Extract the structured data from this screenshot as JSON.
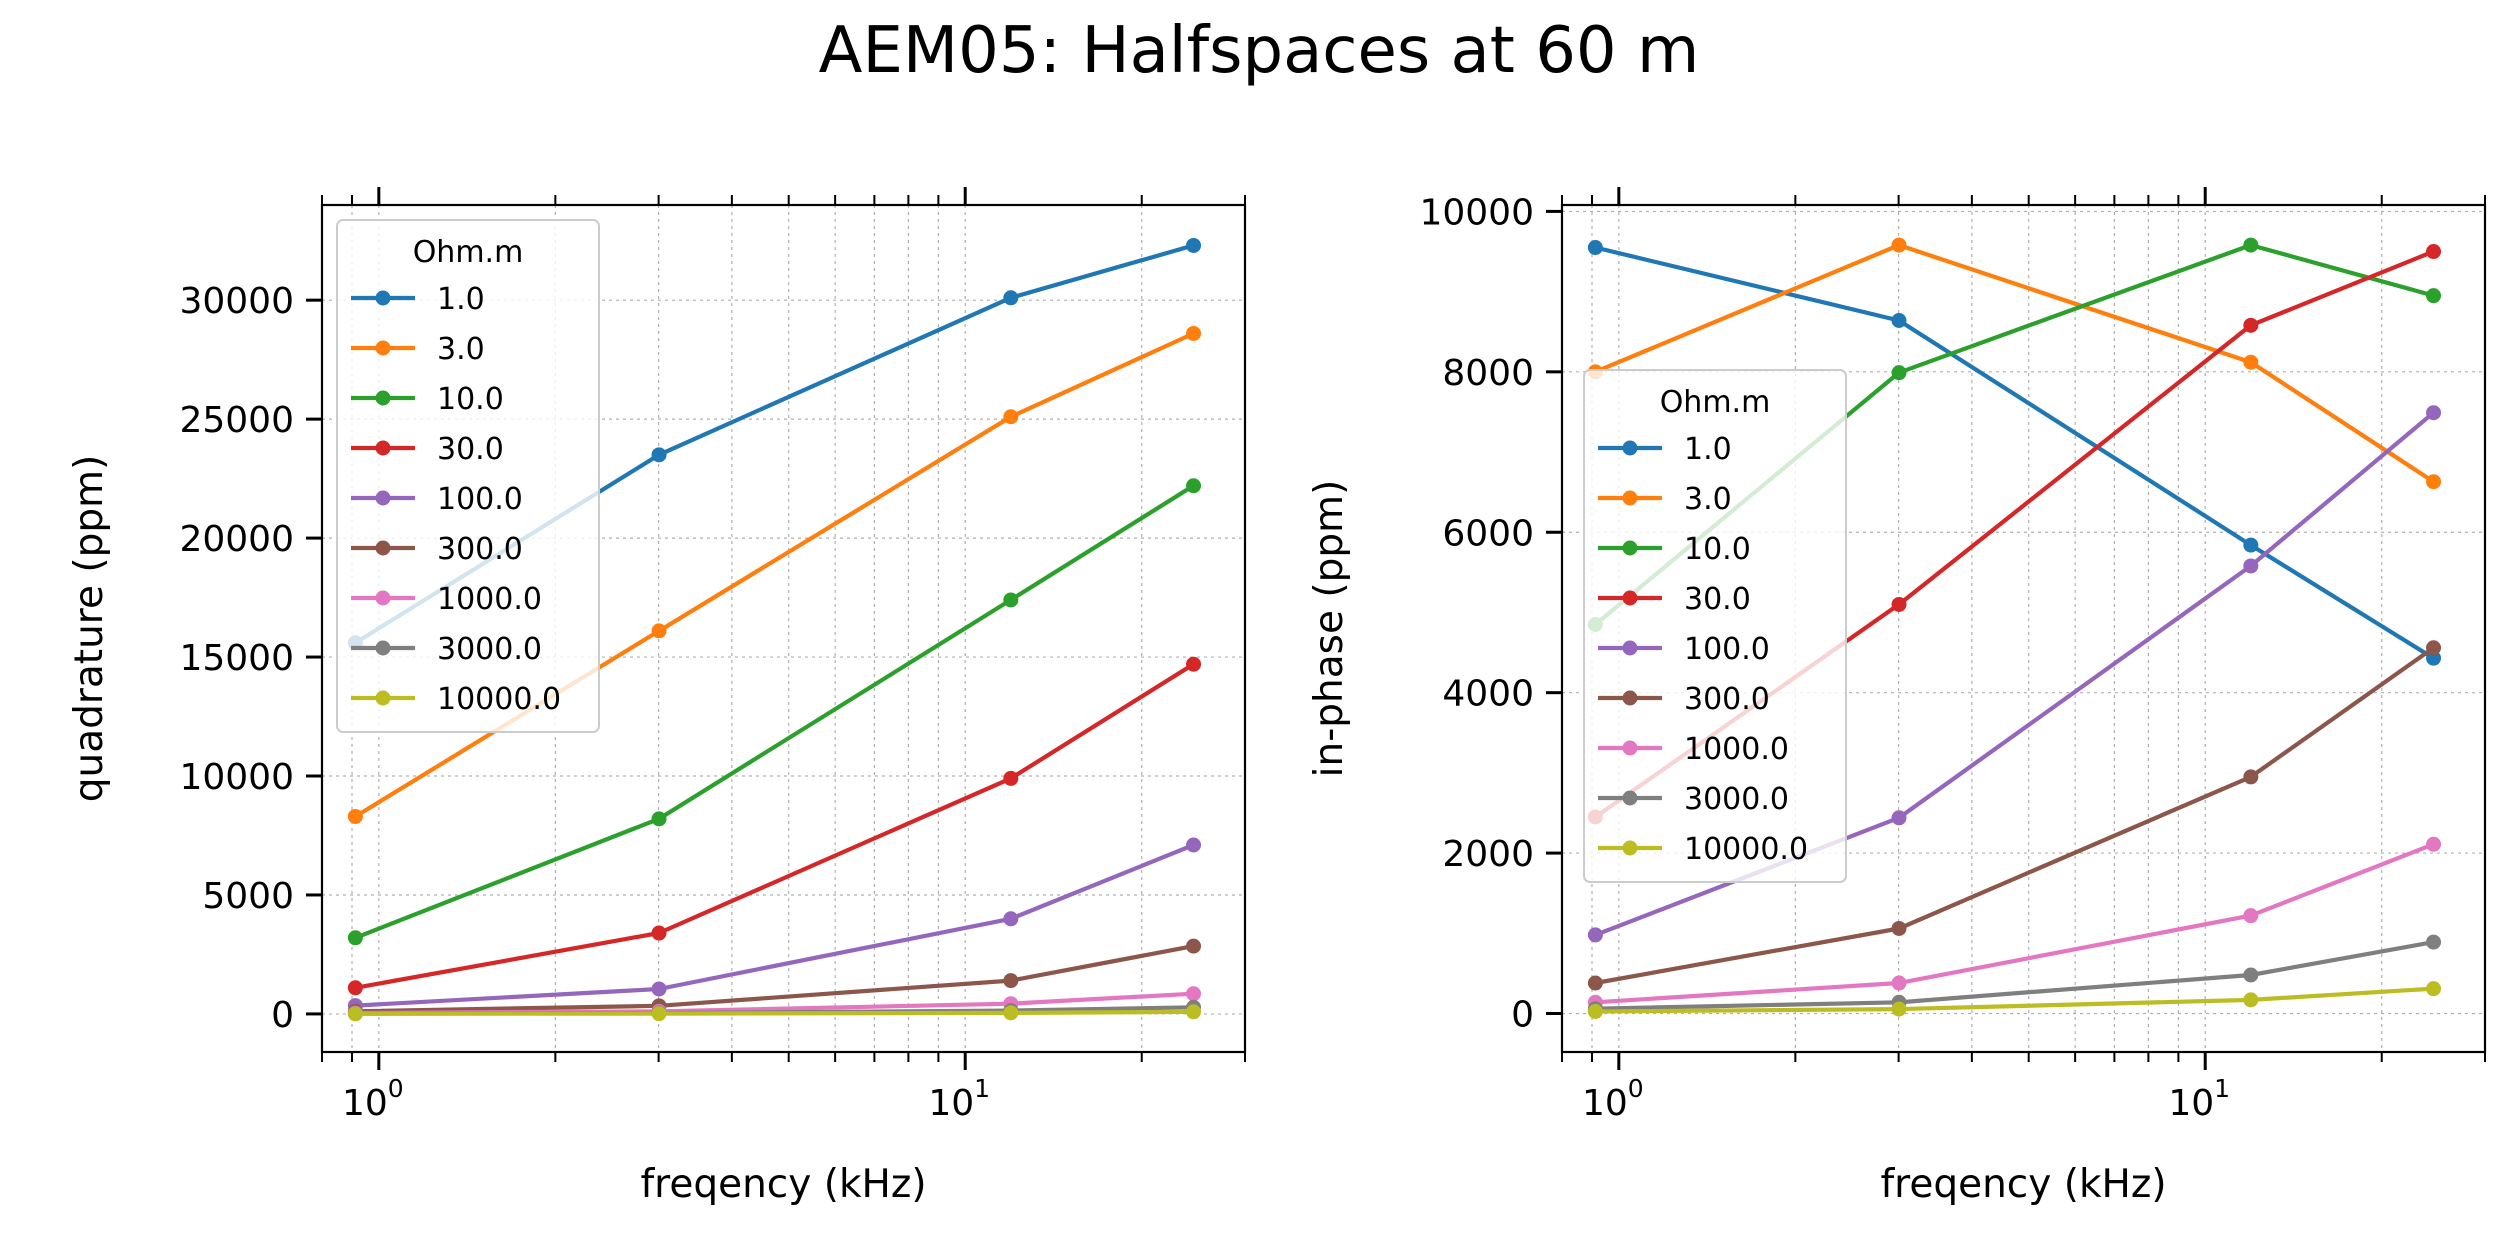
{
  "figure": {
    "suptitle": "AEM05: Halfspaces at 60 m"
  },
  "chart_data": [
    {
      "type": "line",
      "x_scale": "log",
      "xlabel": "freqency (kHz)",
      "ylabel": "quadrature (ppm)",
      "x": [
        0.912,
        3.005,
        11.962,
        24.51
      ],
      "xlim": [
        0.8,
        30
      ],
      "ylim": [
        -1600,
        34000
      ],
      "yticks": [
        0,
        5000,
        10000,
        15000,
        20000,
        25000,
        30000
      ],
      "ytick_labels": [
        "0",
        "5000",
        "10000",
        "15000",
        "20000",
        "25000",
        "30000"
      ],
      "xticks_major": [
        1,
        10
      ],
      "xtick_labels": [
        {
          "base": "10",
          "exp": "0"
        },
        {
          "base": "10",
          "exp": "1"
        }
      ],
      "grid": true,
      "legend": {
        "title": "Ohm.m",
        "placement": "upper-left"
      },
      "series": [
        {
          "name": "1.0",
          "color": "#1f77b4",
          "values": [
            15600,
            23500,
            30100,
            32300
          ]
        },
        {
          "name": "3.0",
          "color": "#ff7f0e",
          "values": [
            8300,
            16100,
            25100,
            28600
          ]
        },
        {
          "name": "10.0",
          "color": "#2ca02c",
          "values": [
            3200,
            8200,
            17400,
            22200
          ]
        },
        {
          "name": "30.0",
          "color": "#d62728",
          "values": [
            1100,
            3400,
            9900,
            14700
          ]
        },
        {
          "name": "100.0",
          "color": "#9467bd",
          "values": [
            350,
            1050,
            4000,
            7100
          ]
        },
        {
          "name": "300.0",
          "color": "#8c564b",
          "values": [
            110,
            340,
            1400,
            2850
          ]
        },
        {
          "name": "1000.0",
          "color": "#e377c2",
          "values": [
            40,
            110,
            430,
            850
          ]
        },
        {
          "name": "3000.0",
          "color": "#7f7f7f",
          "values": [
            15,
            40,
            140,
            280
          ]
        },
        {
          "name": "10000.0",
          "color": "#bcbd22",
          "values": [
            5,
            12,
            45,
            90
          ]
        }
      ]
    },
    {
      "type": "line",
      "x_scale": "log",
      "xlabel": "freqency (kHz)",
      "ylabel": "in-phase (ppm)",
      "x": [
        0.912,
        3.005,
        11.962,
        24.51
      ],
      "xlim": [
        0.8,
        30
      ],
      "ylim": [
        -480,
        10080
      ],
      "yticks": [
        0,
        2000,
        4000,
        6000,
        8000,
        10000
      ],
      "ytick_labels": [
        "0",
        "2000",
        "4000",
        "6000",
        "8000",
        "10000"
      ],
      "xticks_major": [
        1,
        10
      ],
      "xtick_labels": [
        {
          "base": "10",
          "exp": "0"
        },
        {
          "base": "10",
          "exp": "1"
        }
      ],
      "grid": true,
      "legend": {
        "title": "Ohm.m",
        "placement": "center-left"
      },
      "series": [
        {
          "name": "1.0",
          "color": "#1f77b4",
          "values": [
            9550,
            8640,
            5840,
            4430
          ]
        },
        {
          "name": "3.0",
          "color": "#ff7f0e",
          "values": [
            8000,
            9580,
            8120,
            6630
          ]
        },
        {
          "name": "10.0",
          "color": "#2ca02c",
          "values": [
            4850,
            7990,
            9580,
            8950
          ]
        },
        {
          "name": "30.0",
          "color": "#d62728",
          "values": [
            2450,
            5100,
            8580,
            9500
          ]
        },
        {
          "name": "100.0",
          "color": "#9467bd",
          "values": [
            980,
            2440,
            5580,
            7490
          ]
        },
        {
          "name": "300.0",
          "color": "#8c564b",
          "values": [
            380,
            1060,
            2950,
            4560
          ]
        },
        {
          "name": "1000.0",
          "color": "#e377c2",
          "values": [
            140,
            380,
            1220,
            2110
          ]
        },
        {
          "name": "3000.0",
          "color": "#7f7f7f",
          "values": [
            60,
            140,
            480,
            890
          ]
        },
        {
          "name": "10000.0",
          "color": "#bcbd22",
          "values": [
            25,
            55,
            170,
            310
          ]
        }
      ]
    }
  ]
}
